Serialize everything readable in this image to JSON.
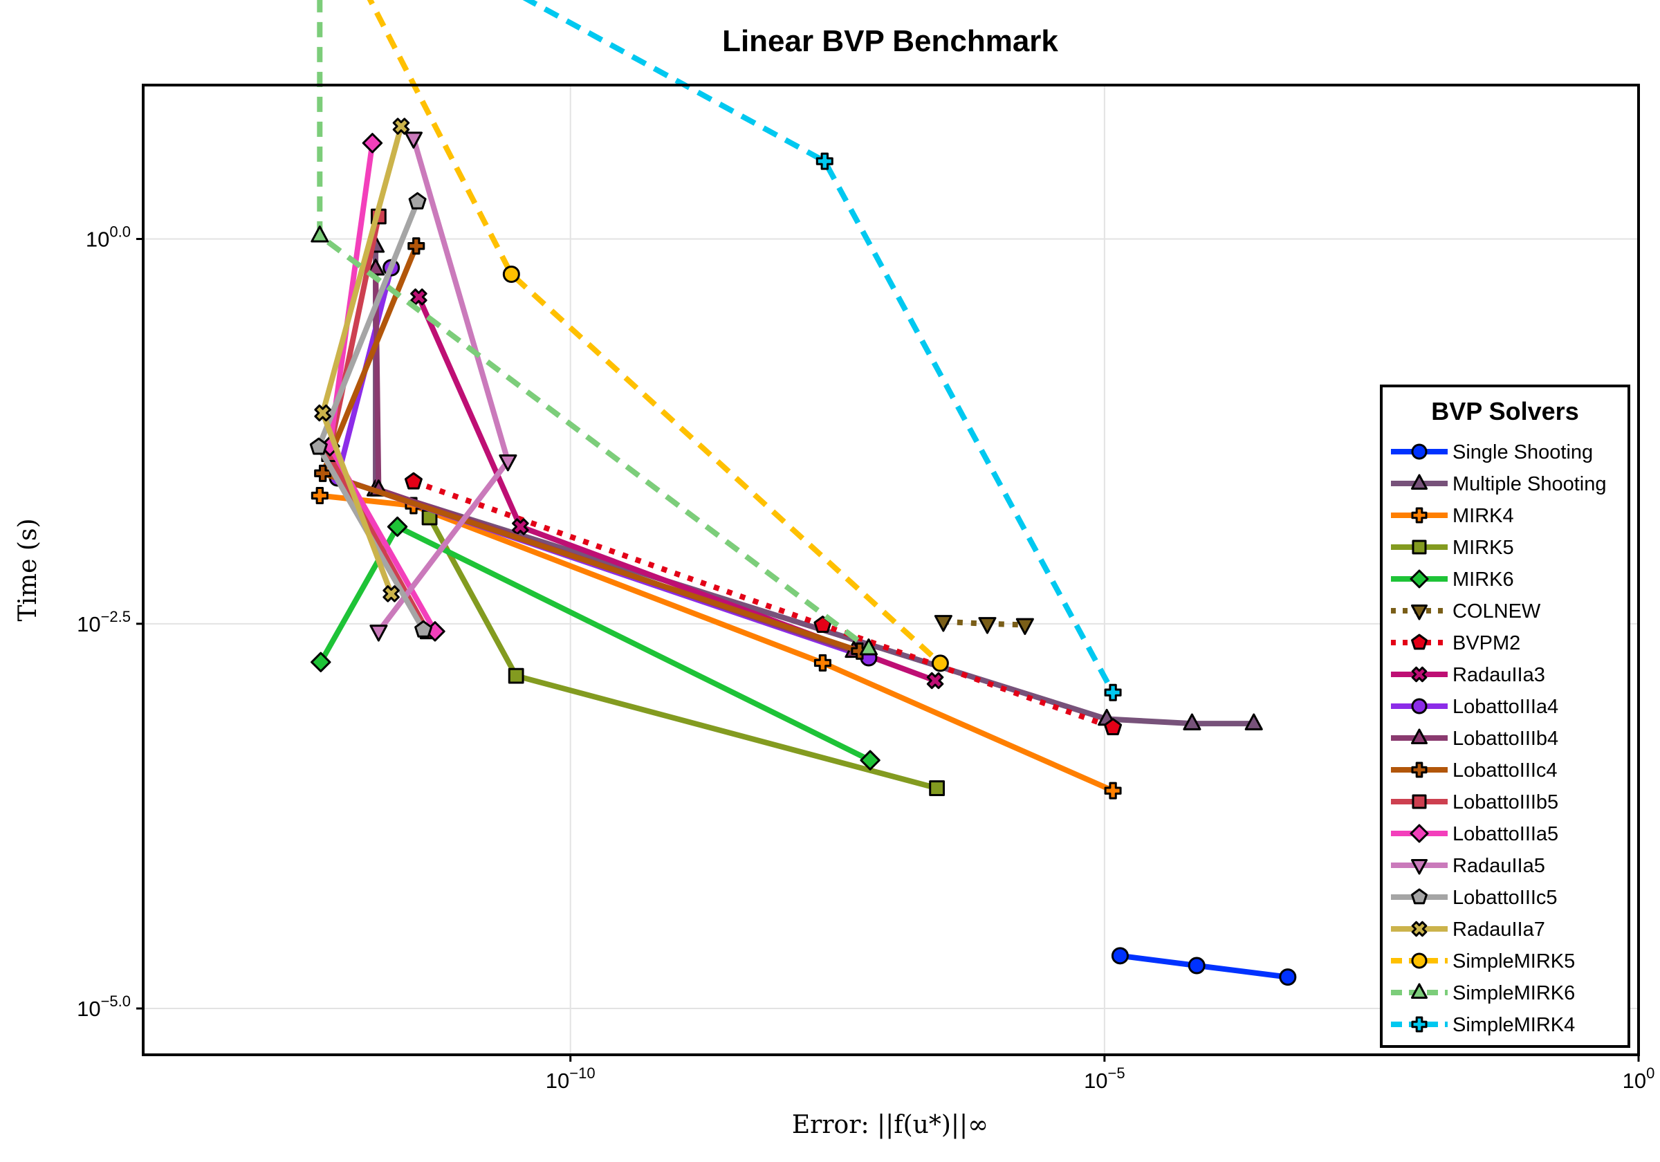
{
  "chart_data": {
    "type": "line",
    "title": "Linear BVP Benchmark",
    "xlabel": "Error: ||f(u*)||∞",
    "ylabel": "Time (s)",
    "xscale": "log10",
    "yscale": "log10",
    "xlim": [
      1e-14,
      1
    ],
    "ylim": [
      5e-06,
      10
    ],
    "xticks": [
      1e-10,
      1e-05,
      1
    ],
    "xtick_labels": [
      "10^−10",
      "10^−5",
      "10^0"
    ],
    "yticks": [
      1e-05,
      0.00316,
      1
    ],
    "ytick_labels": [
      "10^−5.0",
      "10^−2.5",
      "10^0.0"
    ],
    "grid": true,
    "legend": {
      "title": "BVP Solvers",
      "position": "right"
    },
    "series": [
      {
        "name": "Single Shooting",
        "color": "#0032ff",
        "dash": "solid",
        "marker": "circle",
        "x": [
          1.4e-05,
          7.3e-05,
          0.00052
        ],
        "y": [
          2.2e-05,
          1.9e-05,
          1.6e-05
        ]
      },
      {
        "name": "Multiple Shooting",
        "color": "#77527a",
        "dash": "solid",
        "marker": "triangle-up",
        "x": [
          1.5e-12,
          1.5e-12,
          1.05e-05,
          6.6e-05,
          0.00025
        ],
        "y": [
          0.9,
          0.0235,
          0.00076,
          0.00071,
          0.00071
        ]
      },
      {
        "name": "MIRK4",
        "color": "#ff7f00",
        "dash": "solid",
        "marker": "cross",
        "x": [
          4.5e-13,
          3.4e-12,
          2.3e-08,
          1.2e-05
        ],
        "y": [
          0.0215,
          0.0185,
          0.00176,
          0.00026
        ]
      },
      {
        "name": "MIRK5",
        "color": "#839b20",
        "dash": "solid",
        "marker": "square",
        "x": [
          4.8e-12,
          3.1e-11,
          2.7e-07
        ],
        "y": [
          0.0155,
          0.00145,
          0.00027
        ]
      },
      {
        "name": "MIRK6",
        "color": "#1ec337",
        "dash": "solid",
        "marker": "diamond",
        "x": [
          4.6e-13,
          2.4e-12,
          6.4e-08
        ],
        "y": [
          0.00178,
          0.0135,
          0.00041
        ]
      },
      {
        "name": "COLNEW",
        "color": "#7a5e18",
        "dash": "dot",
        "marker": "triangle-down",
        "x": [
          3.1e-07,
          8e-07,
          1.8e-06
        ],
        "y": [
          0.00326,
          0.00316,
          0.00311
        ]
      },
      {
        "name": "BVPM2",
        "color": "#e30017",
        "dash": "dot",
        "marker": "pentagon",
        "x": [
          3.4e-12,
          2.3e-08,
          1.2e-05
        ],
        "y": [
          0.0265,
          0.0031,
          0.00067
        ]
      },
      {
        "name": "RadauIIa3",
        "color": "#be0f74",
        "dash": "solid",
        "marker": "x-cross",
        "x": [
          3.8e-12,
          3.4e-11,
          2.6e-07
        ],
        "y": [
          0.42,
          0.0135,
          0.00135
        ]
      },
      {
        "name": "LobattoIIIa4",
        "color": "#8c2ce8",
        "dash": "solid",
        "marker": "circle",
        "x": [
          2.1e-12,
          6.6e-13,
          6.2e-08
        ],
        "y": [
          0.65,
          0.028,
          0.0019
        ]
      },
      {
        "name": "LobattoIIIb4",
        "color": "#8a3a6f",
        "dash": "solid",
        "marker": "triangle-up",
        "x": [
          1.5e-12,
          1.6e-12,
          4.5e-08
        ],
        "y": [
          0.64,
          0.0235,
          0.0021
        ]
      },
      {
        "name": "LobattoIIIc4",
        "color": "#b2560a",
        "dash": "solid",
        "marker": "cross",
        "x": [
          3.6e-12,
          4.8e-13,
          5.1e-08
        ],
        "y": [
          0.9,
          0.03,
          0.0021
        ]
      },
      {
        "name": "LobattoIIIb5",
        "color": "#cd4050",
        "dash": "solid",
        "marker": "square",
        "x": [
          1.6e-12,
          5.5e-13,
          4.6e-12
        ],
        "y": [
          1.4,
          0.04,
          0.00282
        ]
      },
      {
        "name": "LobattoIIIa5",
        "color": "#f33fbb",
        "dash": "solid",
        "marker": "diamond",
        "x": [
          1.4e-12,
          5.6e-13,
          5.4e-12
        ],
        "y": [
          4.2,
          0.045,
          0.00282
        ]
      },
      {
        "name": "RadauIIa5",
        "color": "#ca7abb",
        "dash": "solid",
        "marker": "triangle-down",
        "x": [
          3.4e-12,
          2.6e-11,
          1.6e-12
        ],
        "y": [
          4.5,
          0.036,
          0.00282
        ]
      },
      {
        "name": "LobattoIIIc5",
        "color": "#a5a5a5",
        "dash": "solid",
        "marker": "pentagon",
        "x": [
          3.7e-12,
          4.4e-13,
          4.2e-12
        ],
        "y": [
          1.75,
          0.0445,
          0.00289
        ]
      },
      {
        "name": "RadauIIa7",
        "color": "#cbb34b",
        "dash": "solid",
        "marker": "x-cross",
        "x": [
          2.6e-12,
          4.8e-13,
          2.1e-12
        ],
        "y": [
          5.4,
          0.074,
          0.00495
        ]
      },
      {
        "name": "SimpleMIRK5",
        "color": "#ffc000",
        "dash": "dash",
        "marker": "circle",
        "x": [
          4.5e-13,
          2.8e-11,
          2.9e-07
        ],
        "y": [
          155,
          0.59,
          0.00175
        ]
      },
      {
        "name": "SimpleMIRK6",
        "color": "#7ccd7a",
        "dash": "dash",
        "marker": "triangle-up",
        "x": [
          4.5e-13,
          4.5e-13,
          6.2e-08
        ],
        "y": [
          240,
          1.05,
          0.00218
        ]
      },
      {
        "name": "SimpleMIRK4",
        "color": "#00c8f0",
        "dash": "dash",
        "marker": "cross",
        "x": [
          3.4e-12,
          2.4e-08,
          1.2e-05
        ],
        "y": [
          91,
          3.2,
          0.00113
        ]
      }
    ]
  }
}
